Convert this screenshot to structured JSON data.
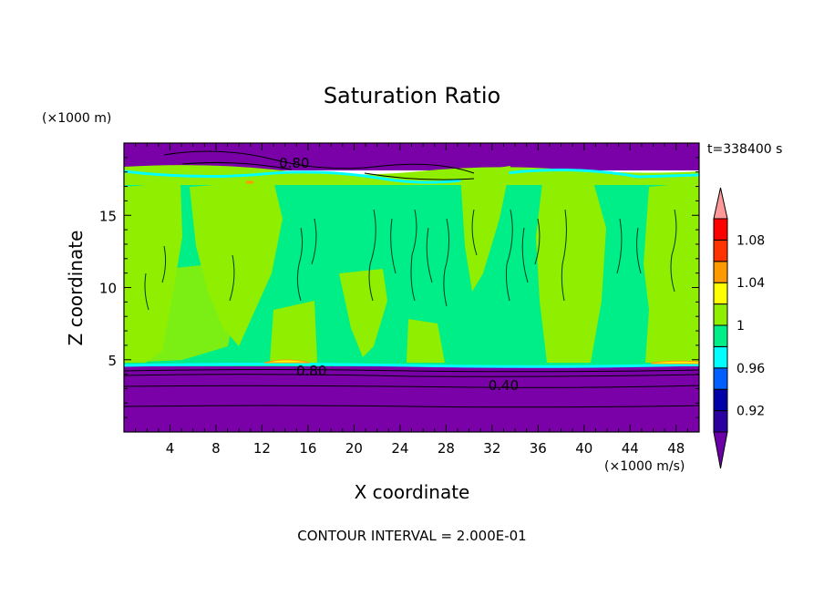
{
  "chart_data": {
    "type": "contour",
    "title": "Saturation Ratio",
    "xlabel": "X coordinate",
    "ylabel": "Z coordinate",
    "x_unit": "(×1000 m/s)",
    "y_unit": "(×1000 m)",
    "time_label": "t=338400 s",
    "footer": "CONTOUR INTERVAL = 2.000E-01",
    "xlim": [
      0,
      50
    ],
    "ylim": [
      0,
      20
    ],
    "x_ticks": [
      4,
      8,
      12,
      16,
      20,
      24,
      28,
      32,
      36,
      40,
      44,
      48
    ],
    "y_ticks": [
      5,
      10,
      15
    ],
    "contour_labels": [
      {
        "text": "0.80",
        "x": 14.8,
        "y": 18.5
      },
      {
        "text": "0.80",
        "x": 16.3,
        "y": 4.1
      },
      {
        "text": "0.40",
        "x": 33.0,
        "y": 3.1
      }
    ],
    "colorbar": {
      "levels": [
        0.92,
        0.96,
        1,
        1.04,
        1.08
      ],
      "colors": [
        "#6a00a6",
        "#2a00a0",
        "#0000a8",
        "#0060ff",
        "#00ffff",
        "#00ee88",
        "#90ee00",
        "#ffff00",
        "#ff9900",
        "#ff3300",
        "#ff0000",
        "#ff9999"
      ]
    }
  }
}
